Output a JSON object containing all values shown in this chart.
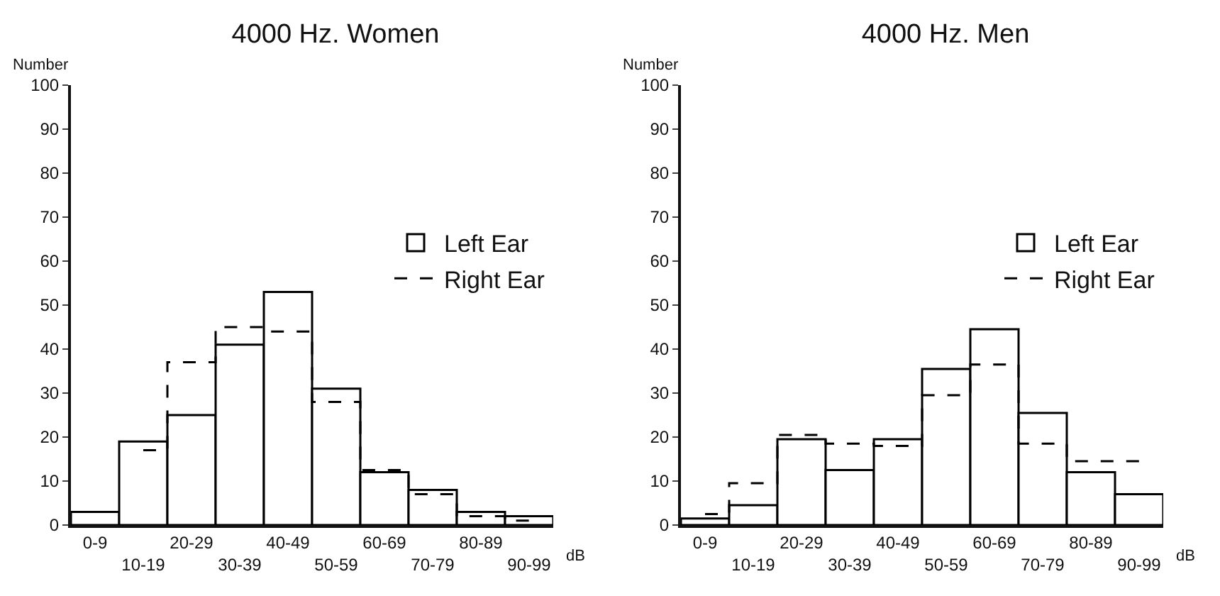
{
  "chart_data": [
    {
      "type": "bar",
      "title": "4000 Hz. Women",
      "xlabel": "dB",
      "ylabel": "Number",
      "categories": [
        "0-9",
        "10-19",
        "20-29",
        "30-39",
        "40-49",
        "50-59",
        "60-69",
        "70-79",
        "80-89",
        "90-99"
      ],
      "series": [
        {
          "name": "Left Ear",
          "color": "#000000",
          "values": [
            3,
            19,
            25,
            41,
            53,
            31,
            12,
            8,
            3,
            2
          ]
        },
        {
          "name": "Right Ear",
          "type": "step",
          "color": "#000000",
          "line_style": "dashed",
          "values": [
            null,
            17,
            37,
            45,
            44,
            28,
            12.5,
            7,
            2,
            1
          ]
        }
      ],
      "ylim": [
        0,
        100
      ],
      "yticks": [
        0,
        10,
        20,
        30,
        40,
        50,
        60,
        70,
        80,
        90,
        100
      ],
      "grid": false,
      "legend": "right"
    },
    {
      "type": "bar",
      "title": "4000 Hz. Men",
      "xlabel": "dB",
      "ylabel": "Number",
      "categories": [
        "0-9",
        "10-19",
        "20-29",
        "30-39",
        "40-49",
        "50-59",
        "60-69",
        "70-79",
        "80-89",
        "90-99"
      ],
      "series": [
        {
          "name": "Left Ear",
          "color": "#000000",
          "values": [
            1.5,
            4.5,
            19.5,
            12.5,
            19.5,
            35.5,
            44.5,
            25.5,
            12,
            7
          ]
        },
        {
          "name": "Right Ear",
          "type": "step",
          "color": "#000000",
          "line_style": "dashed",
          "values": [
            2.5,
            9.5,
            20.5,
            18.5,
            18,
            29.5,
            36.5,
            18.5,
            14.5,
            14.5
          ]
        }
      ],
      "ylim": [
        0,
        100
      ],
      "yticks": [
        0,
        10,
        20,
        30,
        40,
        50,
        60,
        70,
        80,
        90,
        100
      ],
      "grid": false,
      "legend": "right"
    }
  ]
}
